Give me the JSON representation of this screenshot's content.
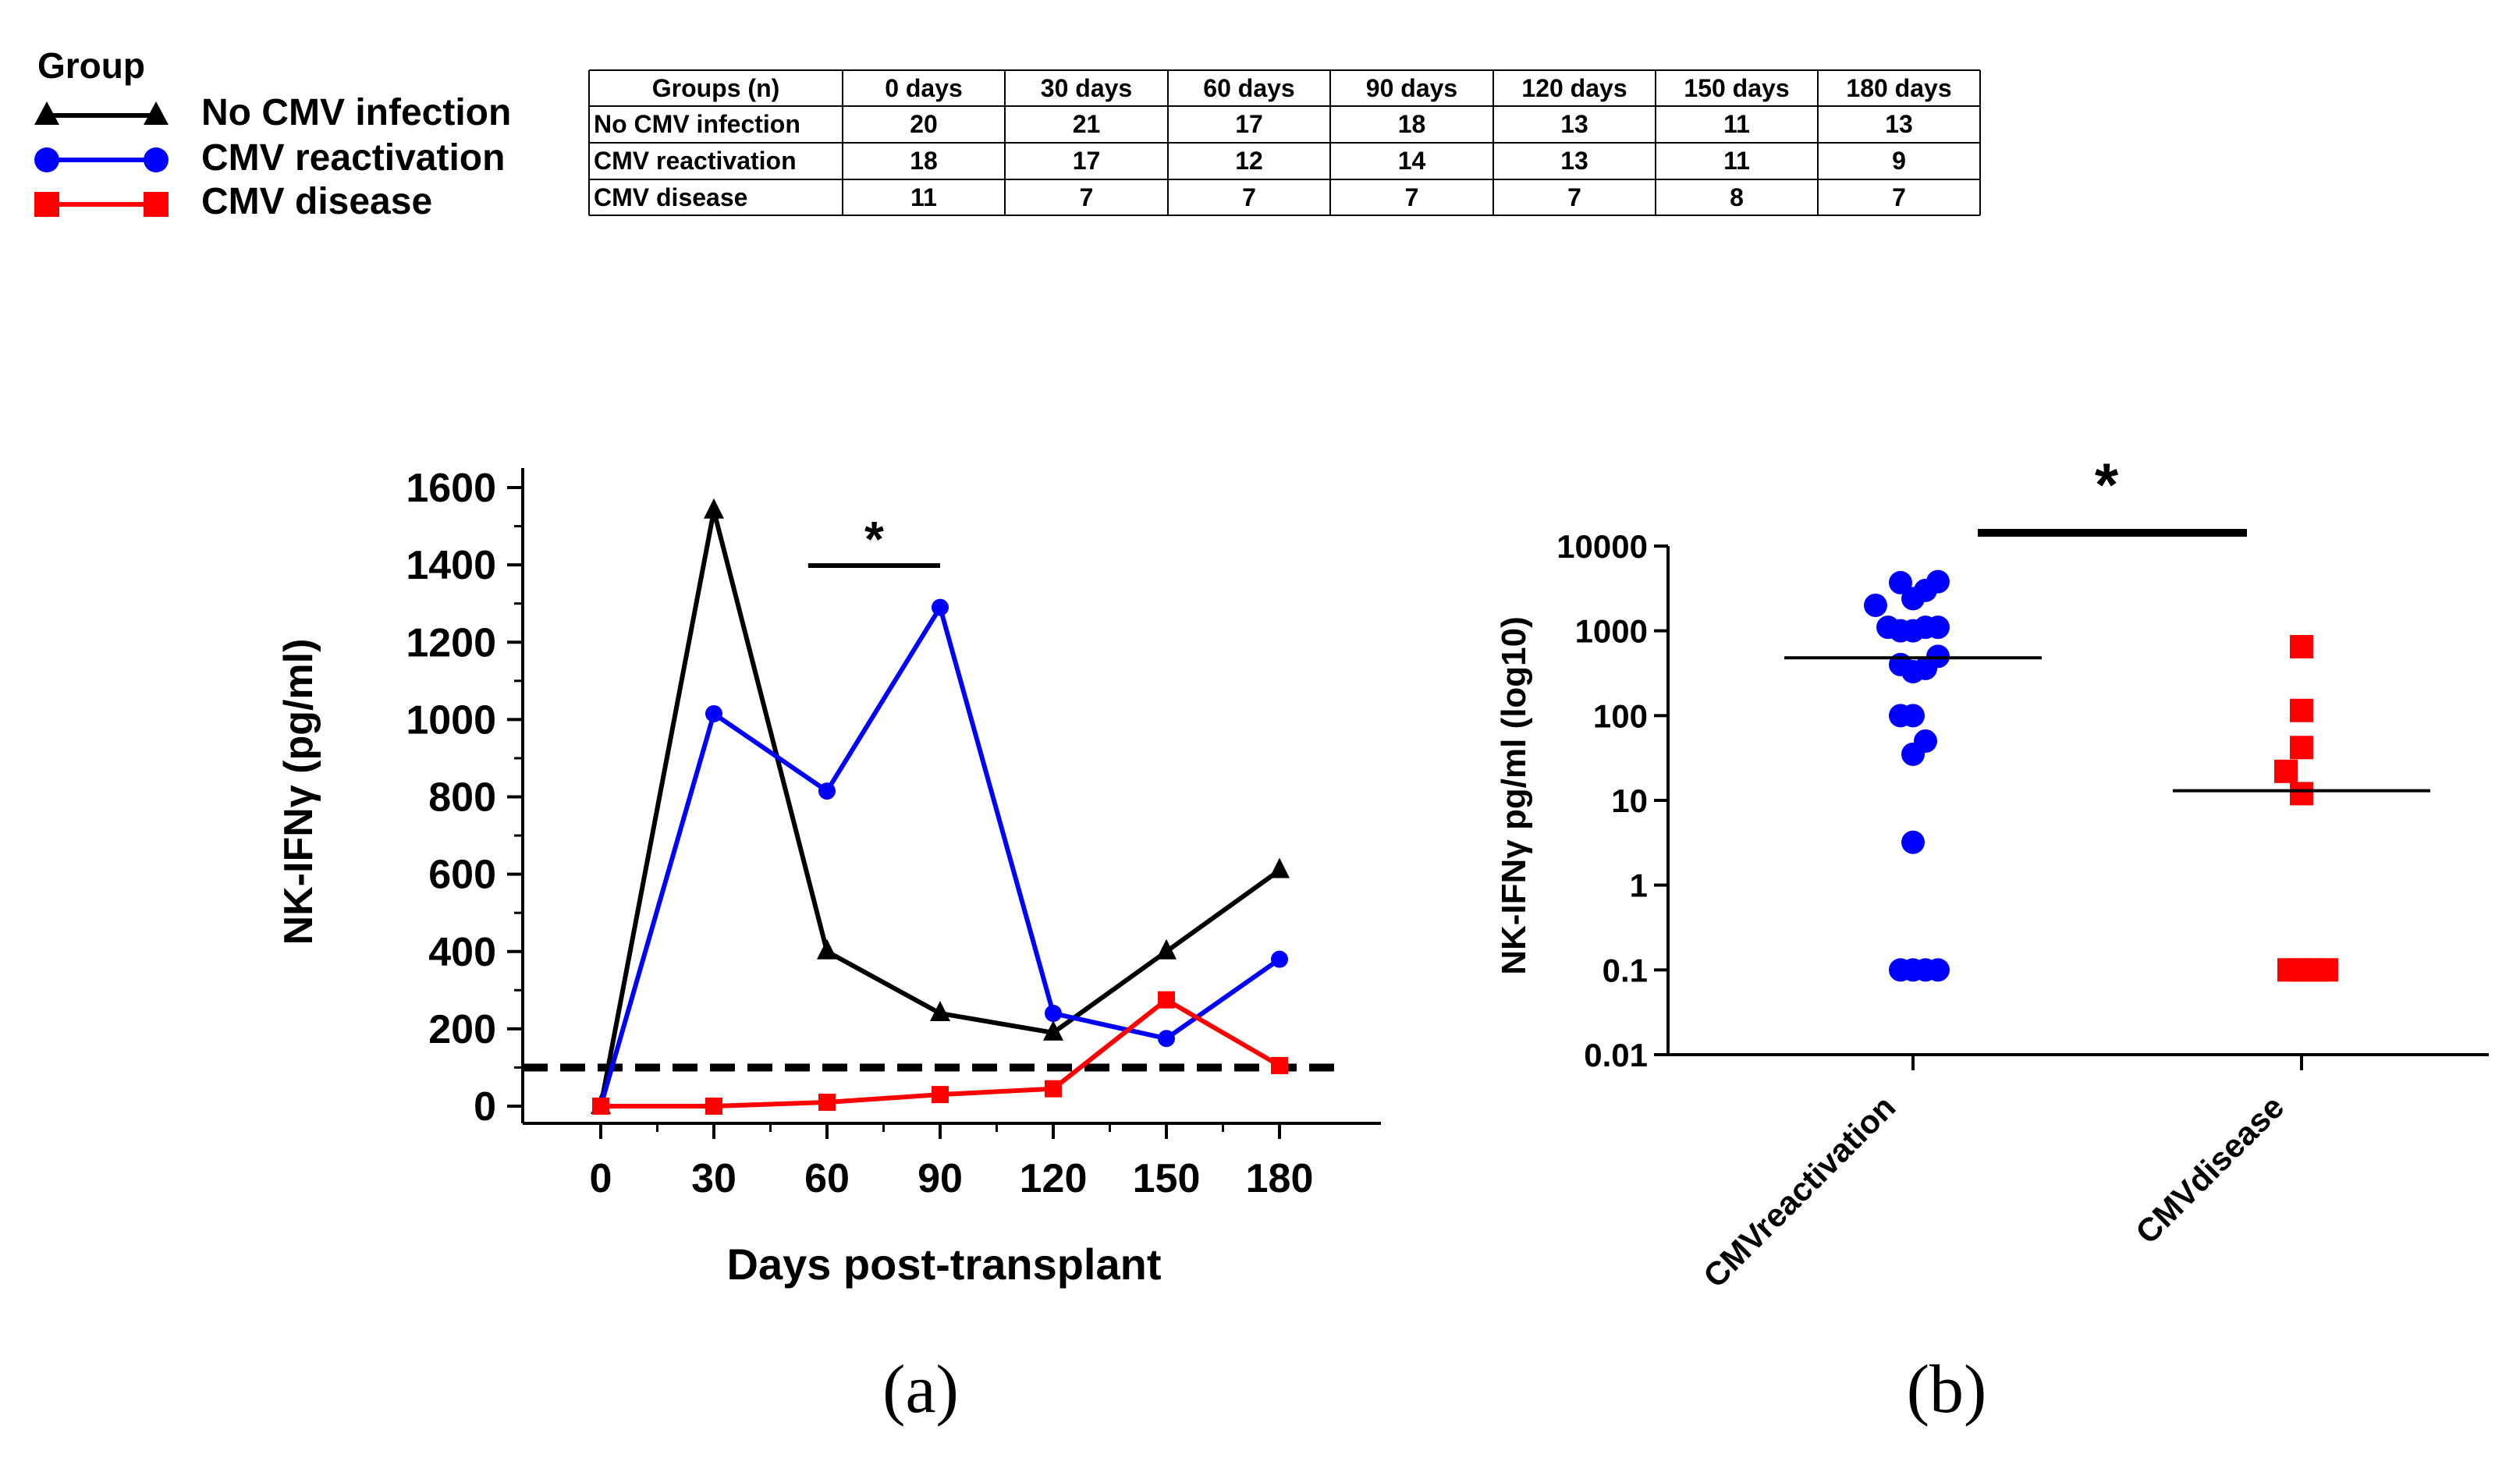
{
  "legend": {
    "title": "Group",
    "items": [
      {
        "label": "No CMV infection",
        "color": "#000000",
        "marker": "triangle"
      },
      {
        "label": "CMV reactivation",
        "color": "#0000ff",
        "marker": "circle"
      },
      {
        "label": "CMV disease",
        "color": "#ff0000",
        "marker": "square"
      }
    ]
  },
  "table": {
    "headers": [
      "Groups (n)",
      "0 days",
      "30 days",
      "60 days",
      "90 days",
      "120 days",
      "150 days",
      "180 days"
    ],
    "rows": [
      [
        "No CMV infection",
        "20",
        "21",
        "17",
        "18",
        "13",
        "11",
        "13"
      ],
      [
        "CMV reactivation",
        "18",
        "17",
        "12",
        "14",
        "13",
        "11",
        "9"
      ],
      [
        "CMV disease",
        "11",
        "7",
        "7",
        "7",
        "7",
        "8",
        "7"
      ]
    ]
  },
  "panel_labels": {
    "a": "(a)",
    "b": "(b)"
  },
  "chart_data": [
    {
      "type": "line",
      "xlabel": "Days post-transplant",
      "ylabel": "NK-IFNγ (pg/ml)",
      "x": [
        0,
        30,
        60,
        90,
        120,
        150,
        180
      ],
      "xticks": [
        "0",
        "30",
        "60",
        "90",
        "120",
        "150",
        "180"
      ],
      "ylim": [
        0,
        1600
      ],
      "yticks": [
        "0",
        "200",
        "400",
        "600",
        "800",
        "1000",
        "1200",
        "1400",
        "1600"
      ],
      "threshold": 100,
      "series": [
        {
          "name": "No CMV infection",
          "color": "#000000",
          "marker": "triangle",
          "values": [
            0,
            1540,
            400,
            240,
            190,
            400,
            610
          ]
        },
        {
          "name": "CMV reactivation",
          "color": "#0000ff",
          "marker": "circle",
          "values": [
            0,
            1015,
            815,
            1290,
            240,
            175,
            380
          ]
        },
        {
          "name": "CMV disease",
          "color": "#ff0000",
          "marker": "square",
          "values": [
            0,
            0,
            10,
            30,
            45,
            275,
            105
          ]
        }
      ],
      "significance": {
        "label": "*",
        "x_from": 55,
        "x_to": 90
      }
    },
    {
      "type": "scatter",
      "yscale": "log10",
      "ylabel": "NK-IFNγ pg/ml (log10)",
      "ylim": [
        0.01,
        10000
      ],
      "yticks": [
        "0.01",
        "0.1",
        "1",
        "10",
        "100",
        "1000",
        "10000"
      ],
      "categories": [
        "CMVreactivation",
        "CMVdisease"
      ],
      "groups": [
        {
          "name": "CMVreactivation",
          "color": "#0000ff",
          "marker": "circle",
          "median": 480,
          "points": [
            [
              -0.04,
              3700
            ],
            [
              0.0,
              2400
            ],
            [
              0.04,
              3000
            ],
            [
              0.08,
              3800
            ],
            [
              -0.12,
              2000
            ],
            [
              -0.08,
              1100
            ],
            [
              -0.04,
              1000
            ],
            [
              0.0,
              1000
            ],
            [
              0.04,
              1100
            ],
            [
              0.08,
              1100
            ],
            [
              -0.04,
              400
            ],
            [
              0.0,
              330
            ],
            [
              0.04,
              360
            ],
            [
              0.08,
              500
            ],
            [
              0.0,
              100
            ],
            [
              -0.04,
              100
            ],
            [
              0.0,
              35
            ],
            [
              0.04,
              50
            ],
            [
              0.0,
              3.2
            ],
            [
              -0.04,
              0.1
            ],
            [
              0.0,
              0.1
            ],
            [
              0.04,
              0.1
            ],
            [
              0.08,
              0.1
            ]
          ]
        },
        {
          "name": "CMVdisease",
          "color": "#ff0000",
          "marker": "square",
          "median": 13,
          "points": [
            [
              0.0,
              650
            ],
            [
              0.0,
              115
            ],
            [
              0.0,
              42
            ],
            [
              -0.05,
              22
            ],
            [
              0.0,
              12
            ],
            [
              -0.04,
              0.1
            ],
            [
              0.0,
              0.1
            ],
            [
              0.04,
              0.1
            ],
            [
              0.08,
              0.1
            ]
          ]
        }
      ],
      "significance": {
        "label": "*"
      }
    }
  ]
}
